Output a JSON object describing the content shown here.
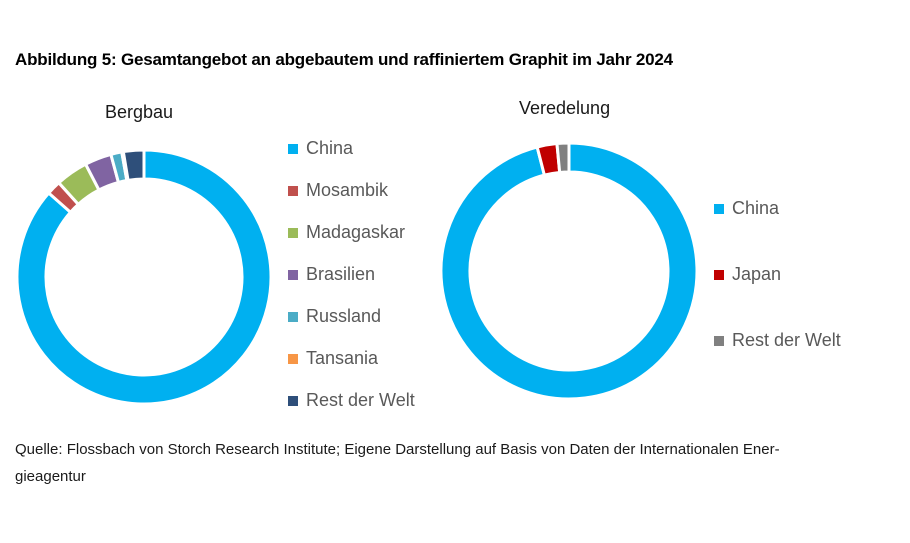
{
  "title": "Abbildung 5: Gesamtangebot an abgebautem und raffiniertem Graphit im Jahr 2024",
  "source": "Quelle: Flossbach von Storch Research Institute; Eigene Darstellung auf Basis von Daten der Internationalen Ener-gieagentur",
  "source_line1": "Quelle: Flossbach von Storch Research Institute; Eigene Darstellung auf Basis von Daten der Internationalen Ener-",
  "source_line2": "gieagentur",
  "chart_data": [
    {
      "type": "pie",
      "subtype": "donut",
      "title": "Bergbau",
      "categories": [
        "China",
        "Mosambik",
        "Madagaskar",
        "Brasilien",
        "Russland",
        "Tansania",
        "Rest der Welt"
      ],
      "values": [
        86.5,
        1.8,
        4.1,
        3.4,
        1.4,
        0.2,
        2.6
      ],
      "unit": "%",
      "colors": [
        "#00B0F0",
        "#C0504D",
        "#9BBB59",
        "#8064A2",
        "#4BACC6",
        "#F79646",
        "#2E4F7A"
      ],
      "legend_position": "right",
      "start_angle": 0,
      "direction": "clockwise"
    },
    {
      "type": "pie",
      "subtype": "donut",
      "title": "Veredelung",
      "categories": [
        "China",
        "Japan",
        "Rest der Welt"
      ],
      "values": [
        96.0,
        2.5,
        1.5
      ],
      "unit": "%",
      "colors": [
        "#00B0F0",
        "#C00000",
        "#808080"
      ],
      "legend_position": "right",
      "start_angle": 0,
      "direction": "clockwise"
    }
  ]
}
